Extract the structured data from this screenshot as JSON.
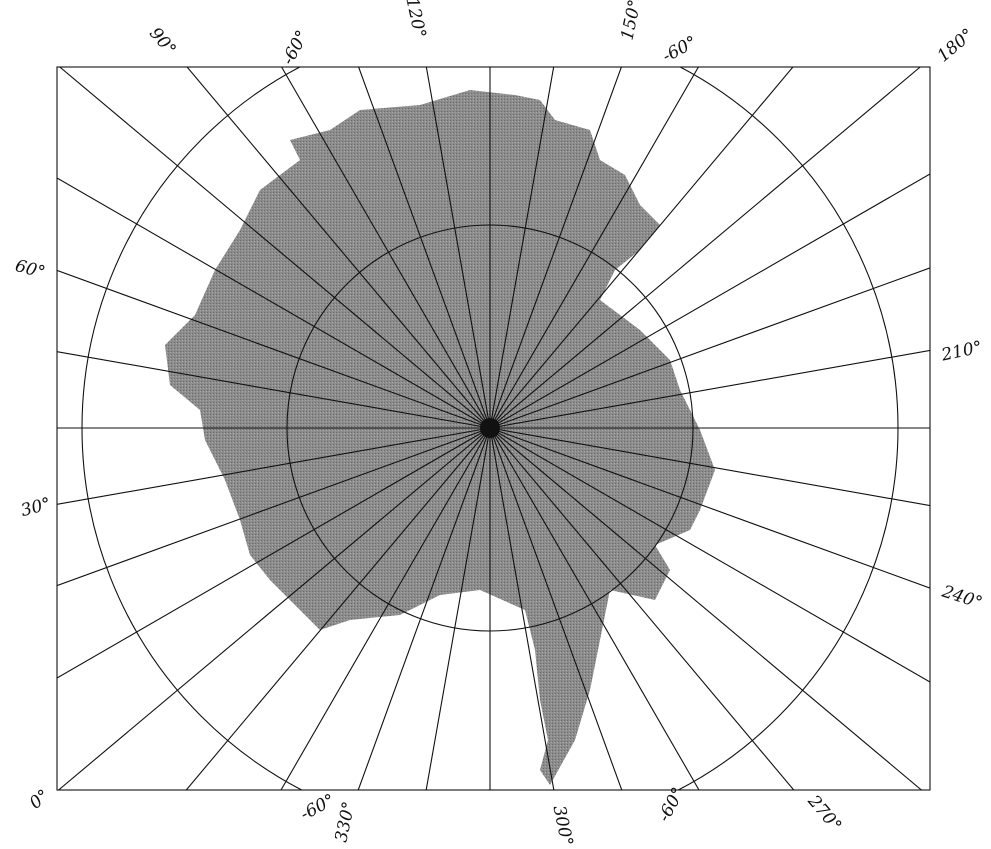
{
  "longitude_labels": [
    "0°",
    "30°",
    "60°",
    "90°",
    "120°",
    "150°",
    "180°",
    "210°",
    "240°",
    "270°",
    "300°",
    "330°"
  ],
  "latitude_labels": [
    "-60°",
    "-60°",
    "-60°",
    "-60°"
  ]
}
